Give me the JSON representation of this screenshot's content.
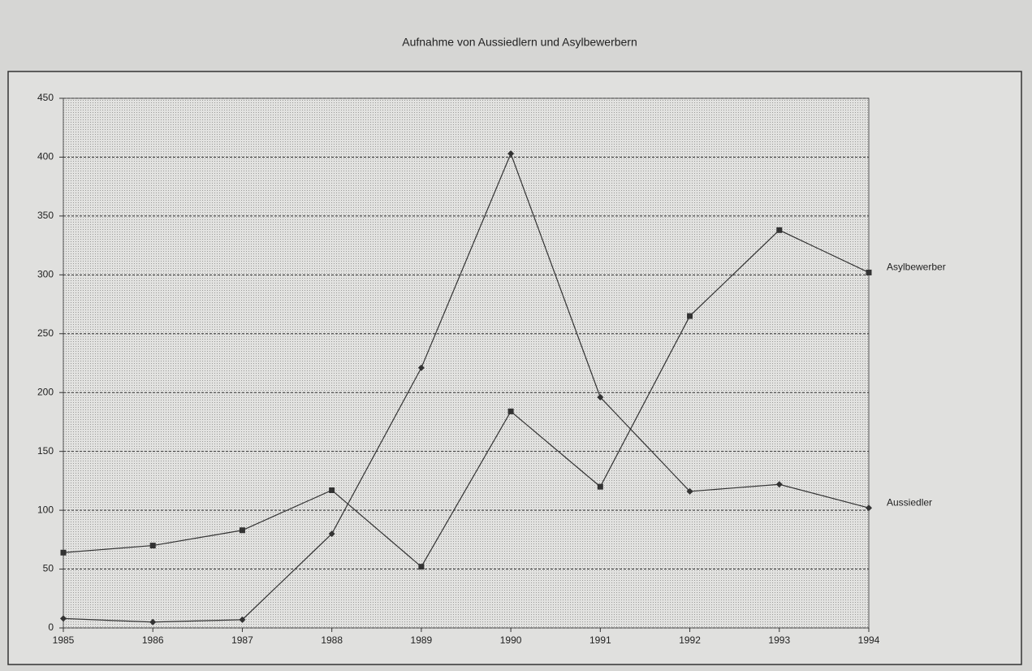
{
  "chart_data": {
    "type": "line",
    "title": "Aufnahme von Aussiedlern und Asylbewerbern",
    "categories": [
      "1985",
      "1986",
      "1987",
      "1988",
      "1989",
      "1990",
      "1991",
      "1992",
      "1993",
      "1994"
    ],
    "series": [
      {
        "name": "Asylbewerber",
        "color": "#333333",
        "marker": "square",
        "values": [
          64,
          70,
          83,
          117,
          52,
          184,
          120,
          265,
          338,
          302
        ]
      },
      {
        "name": "Aussiedler",
        "color": "#333333",
        "marker": "diamond",
        "values": [
          8,
          5,
          7,
          80,
          221,
          403,
          196,
          116,
          122,
          102
        ]
      }
    ],
    "ylim": [
      0,
      450
    ],
    "yticks": [
      0,
      50,
      100,
      150,
      200,
      250,
      300,
      350,
      400,
      450
    ],
    "grid": true
  }
}
